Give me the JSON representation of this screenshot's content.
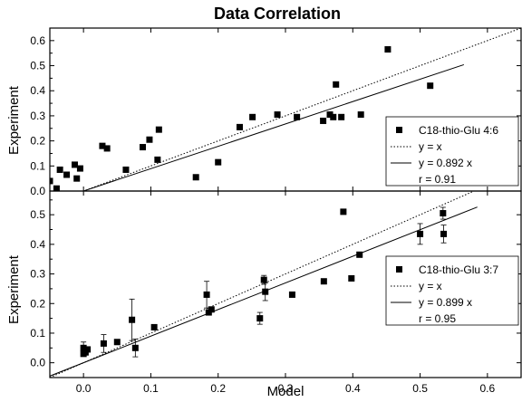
{
  "chart_data": {
    "title": "Data Correlation",
    "xlabel": "Model",
    "ylabel": "Experiment",
    "xlim": [
      -0.05,
      0.65
    ],
    "x_ticks": [
      "0.0",
      "0.1",
      "0.2",
      "0.3",
      "0.4",
      "0.5",
      "0.6"
    ],
    "x_tick_values": [
      0.0,
      0.1,
      0.2,
      0.3,
      0.4,
      0.5,
      0.6
    ],
    "panels": [
      {
        "type": "scatter",
        "ylim": [
          0.0,
          0.65
        ],
        "y_ticks": [
          "0.0",
          "0.1",
          "0.2",
          "0.3",
          "0.4",
          "0.5",
          "0.6"
        ],
        "y_tick_values": [
          0.0,
          0.1,
          0.2,
          0.3,
          0.4,
          0.5,
          0.6
        ],
        "series_name": "C18-thio-Glu 4:6",
        "ref_label": "y = x",
        "fit_label": "y = 0.892 x",
        "r_label": "r = 0.91",
        "fit_slope": 0.892,
        "line_x_range": [
          -0.05,
          0.565
        ],
        "legend_position": "lower-right",
        "points": [
          {
            "x": -0.05,
            "y": 0.04
          },
          {
            "x": -0.04,
            "y": 0.01
          },
          {
            "x": -0.035,
            "y": 0.085
          },
          {
            "x": -0.025,
            "y": 0.065
          },
          {
            "x": -0.013,
            "y": 0.105
          },
          {
            "x": -0.01,
            "y": 0.05
          },
          {
            "x": -0.005,
            "y": 0.09
          },
          {
            "x": 0.028,
            "y": 0.18
          },
          {
            "x": 0.035,
            "y": 0.17
          },
          {
            "x": 0.063,
            "y": 0.085
          },
          {
            "x": 0.088,
            "y": 0.175
          },
          {
            "x": 0.098,
            "y": 0.205
          },
          {
            "x": 0.11,
            "y": 0.125
          },
          {
            "x": 0.112,
            "y": 0.245
          },
          {
            "x": 0.167,
            "y": 0.055
          },
          {
            "x": 0.2,
            "y": 0.115
          },
          {
            "x": 0.232,
            "y": 0.255
          },
          {
            "x": 0.251,
            "y": 0.295
          },
          {
            "x": 0.288,
            "y": 0.305
          },
          {
            "x": 0.317,
            "y": 0.295
          },
          {
            "x": 0.356,
            "y": 0.28
          },
          {
            "x": 0.366,
            "y": 0.305
          },
          {
            "x": 0.375,
            "y": 0.425
          },
          {
            "x": 0.371,
            "y": 0.295
          },
          {
            "x": 0.383,
            "y": 0.295
          },
          {
            "x": 0.412,
            "y": 0.305
          },
          {
            "x": 0.452,
            "y": 0.565
          },
          {
            "x": 0.515,
            "y": 0.42
          }
        ]
      },
      {
        "type": "scatter",
        "ylim": [
          -0.05,
          0.58
        ],
        "y_ticks": [
          "0.0",
          "0.1",
          "0.2",
          "0.3",
          "0.4",
          "0.5"
        ],
        "y_tick_values": [
          0.0,
          0.1,
          0.2,
          0.3,
          0.4,
          0.5
        ],
        "series_name": "C18-thio-Glu 3:7",
        "ref_label": "y = x",
        "fit_label": "y = 0.899 x",
        "r_label": "r = 0.95",
        "fit_slope": 0.899,
        "line_x_range": [
          -0.05,
          0.585
        ],
        "legend_position": "lower-right",
        "points": [
          {
            "x": 0.0,
            "y": 0.03
          },
          {
            "x": 0.0,
            "y": 0.05,
            "err": 0.02
          },
          {
            "x": 0.003,
            "y": 0.035
          },
          {
            "x": 0.006,
            "y": 0.045
          },
          {
            "x": 0.03,
            "y": 0.065,
            "err": 0.03
          },
          {
            "x": 0.05,
            "y": 0.07
          },
          {
            "x": 0.072,
            "y": 0.145,
            "err": 0.07
          },
          {
            "x": 0.077,
            "y": 0.05,
            "err": 0.03
          },
          {
            "x": 0.105,
            "y": 0.12
          },
          {
            "x": 0.183,
            "y": 0.23,
            "err": 0.045
          },
          {
            "x": 0.186,
            "y": 0.17
          },
          {
            "x": 0.19,
            "y": 0.18
          },
          {
            "x": 0.262,
            "y": 0.15,
            "err": 0.02
          },
          {
            "x": 0.268,
            "y": 0.28,
            "err": 0.015
          },
          {
            "x": 0.27,
            "y": 0.24,
            "err": 0.03
          },
          {
            "x": 0.31,
            "y": 0.23
          },
          {
            "x": 0.357,
            "y": 0.275
          },
          {
            "x": 0.386,
            "y": 0.51
          },
          {
            "x": 0.398,
            "y": 0.285
          },
          {
            "x": 0.41,
            "y": 0.365
          },
          {
            "x": 0.5,
            "y": 0.435,
            "err": 0.035
          },
          {
            "x": 0.534,
            "y": 0.505,
            "err": 0.02
          },
          {
            "x": 0.535,
            "y": 0.435,
            "err": 0.03
          }
        ]
      }
    ]
  }
}
